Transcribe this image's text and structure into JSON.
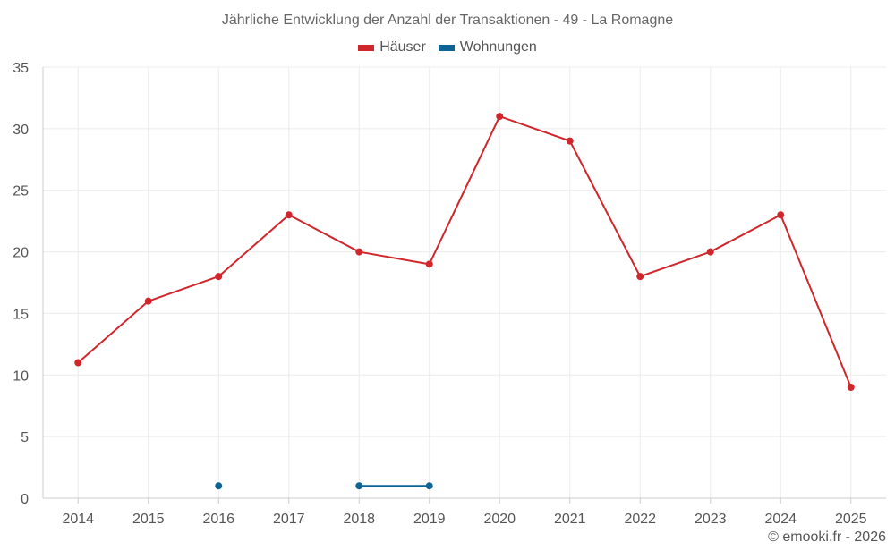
{
  "chart_data": {
    "type": "line",
    "title": "Jährliche Entwicklung der Anzahl der Transaktionen - 49 - La Romagne",
    "categories": [
      "2014",
      "2015",
      "2016",
      "2017",
      "2018",
      "2019",
      "2020",
      "2021",
      "2022",
      "2023",
      "2024",
      "2025"
    ],
    "series": [
      {
        "name": "Häuser",
        "color": "#d0262c",
        "values": [
          11,
          16,
          18,
          23,
          20,
          19,
          31,
          29,
          18,
          20,
          23,
          9
        ]
      },
      {
        "name": "Wohnungen",
        "color": "#0f6496",
        "values": [
          null,
          null,
          1,
          null,
          1,
          1,
          null,
          null,
          null,
          null,
          null,
          null
        ]
      }
    ],
    "ylim": [
      0,
      35
    ],
    "yticks": [
      0,
      5,
      10,
      15,
      20,
      25,
      30,
      35
    ],
    "grid": true,
    "legend": "top-center"
  },
  "credit": "© emooki.fr - 2026"
}
